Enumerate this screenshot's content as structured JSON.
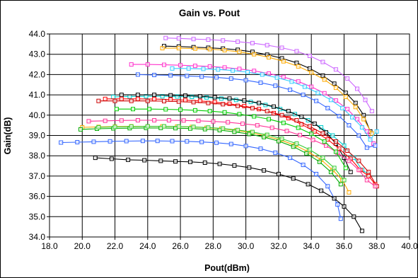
{
  "chart_data": {
    "type": "line",
    "title": "Gain vs. Pout",
    "xlabel": "Pout(dBm)",
    "ylabel": "Gain(dB)",
    "xlim": [
      18.0,
      40.0
    ],
    "ylim": [
      34.0,
      44.0
    ],
    "x_ticks": [
      "18.0",
      "20.0",
      "22.0",
      "24.0",
      "26.0",
      "28.0",
      "30.0",
      "32.0",
      "34.0",
      "36.0",
      "38.0",
      "40.0"
    ],
    "y_ticks": [
      "34.0",
      "35.0",
      "36.0",
      "37.0",
      "38.0",
      "39.0",
      "40.0",
      "41.0",
      "42.0",
      "43.0",
      "44.0"
    ],
    "grid": true,
    "marker": "square",
    "series": [
      {
        "color": "#cc66ff",
        "x": [
          25.1,
          25.9,
          26.8,
          27.7,
          28.6,
          29.5,
          30.4,
          31.3,
          32.2,
          33.1,
          33.9,
          34.7,
          35.5,
          36.2,
          36.8,
          37.3,
          37.7
        ],
        "y": [
          43.8,
          43.78,
          43.75,
          43.72,
          43.68,
          43.62,
          43.55,
          43.45,
          43.32,
          43.15,
          42.92,
          42.62,
          42.25,
          41.8,
          41.3,
          40.75,
          40.2
        ]
      },
      {
        "color": "#000000",
        "x": [
          25.0,
          25.9,
          26.8,
          27.7,
          28.6,
          29.5,
          30.4,
          31.3,
          32.2,
          33.1,
          33.9,
          34.7,
          35.4,
          36.1,
          36.7,
          37.2,
          37.6
        ],
        "y": [
          43.4,
          43.38,
          43.35,
          43.32,
          43.28,
          43.22,
          43.12,
          42.98,
          42.8,
          42.58,
          42.3,
          41.95,
          41.55,
          41.1,
          40.6,
          40.0,
          39.2
        ]
      },
      {
        "color": "#ffaa00",
        "x": [
          24.9,
          25.9,
          26.9,
          27.8,
          28.7,
          29.6,
          30.5,
          31.4,
          32.3,
          33.2,
          34.0,
          34.8,
          35.5,
          36.1,
          36.7,
          37.2,
          37.7
        ],
        "y": [
          43.3,
          43.3,
          43.28,
          43.25,
          43.2,
          43.12,
          43.0,
          42.85,
          42.65,
          42.4,
          42.1,
          41.75,
          41.35,
          40.9,
          40.4,
          39.8,
          39.1
        ]
      },
      {
        "color": "#ff33cc",
        "x": [
          23.0,
          24.0,
          25.0,
          26.0,
          26.9,
          27.8,
          28.7,
          29.6,
          30.5,
          31.4,
          32.3,
          33.2,
          34.0,
          34.8,
          35.5,
          36.2,
          36.8,
          37.4,
          37.8
        ],
        "y": [
          42.5,
          42.5,
          42.48,
          42.46,
          42.43,
          42.4,
          42.35,
          42.28,
          42.18,
          42.05,
          41.88,
          41.66,
          41.4,
          41.08,
          40.72,
          40.3,
          39.8,
          39.2,
          38.6
        ]
      },
      {
        "color": "#33ccff",
        "x": [
          25.5,
          26.5,
          27.4,
          28.3,
          29.2,
          30.1,
          31.0,
          31.9,
          32.8,
          33.6,
          34.4,
          35.2,
          35.9,
          36.5,
          37.1,
          37.6,
          38.0
        ],
        "y": [
          42.3,
          42.3,
          42.28,
          42.25,
          42.2,
          42.12,
          42.0,
          41.85,
          41.65,
          41.4,
          41.1,
          40.75,
          40.35,
          39.9,
          39.4,
          38.8,
          39.2
        ]
      },
      {
        "color": "#3366ff",
        "x": [
          23.4,
          24.4,
          25.4,
          26.4,
          27.3,
          28.2,
          29.1,
          30.0,
          30.9,
          31.8,
          32.7,
          33.5,
          34.3,
          35.0,
          35.7,
          36.3,
          36.9,
          37.4,
          37.9
        ],
        "y": [
          42.0,
          41.98,
          41.96,
          41.93,
          41.9,
          41.86,
          41.8,
          41.72,
          41.6,
          41.45,
          41.25,
          41.0,
          40.7,
          40.35,
          39.95,
          39.5,
          39.0,
          38.4,
          38.5
        ]
      },
      {
        "color": "#00cccc",
        "x": [
          21.9,
          22.9,
          23.9,
          24.9,
          25.8,
          26.7,
          27.6,
          28.5,
          29.4,
          30.3,
          31.2,
          32.1,
          33.0,
          33.8,
          34.6,
          35.3,
          36.0,
          36.6,
          37.1,
          37.5
        ],
        "y": [
          40.9,
          40.92,
          40.93,
          40.93,
          40.92,
          40.9,
          40.87,
          40.82,
          40.75,
          40.65,
          40.5,
          40.3,
          40.05,
          39.75,
          39.4,
          39.0,
          38.5,
          37.9,
          37.3,
          37.1
        ]
      },
      {
        "color": "#000000",
        "x": [
          22.4,
          23.4,
          24.4,
          25.4,
          26.3,
          27.2,
          28.1,
          29.0,
          29.9,
          30.8,
          31.7,
          32.6,
          33.4,
          34.2,
          34.9,
          35.5,
          36.0,
          36.4
        ],
        "y": [
          41.0,
          41.0,
          41.0,
          40.98,
          40.96,
          40.93,
          40.88,
          40.82,
          40.72,
          40.6,
          40.42,
          40.2,
          39.92,
          39.58,
          39.15,
          38.6,
          37.9,
          37.2
        ]
      },
      {
        "color": "#ff0000",
        "x": [
          21.4,
          22.4,
          23.4,
          24.4,
          25.4,
          26.3,
          27.2,
          28.1,
          29.0,
          29.9,
          30.8,
          31.7,
          32.6,
          33.4,
          34.2,
          35.0,
          35.7,
          36.4,
          37.0,
          37.5,
          37.9
        ],
        "y": [
          40.8,
          40.8,
          40.8,
          40.79,
          40.77,
          40.74,
          40.7,
          40.64,
          40.56,
          40.45,
          40.3,
          40.1,
          39.85,
          39.55,
          39.2,
          38.8,
          38.35,
          37.85,
          37.3,
          37.0,
          36.6
        ]
      },
      {
        "color": "#cc0000",
        "x": [
          21.0,
          22.0,
          23.0,
          24.0,
          25.0,
          25.9,
          26.8,
          27.7,
          28.6,
          29.5,
          30.4,
          31.3,
          32.2,
          33.1,
          33.9,
          34.7,
          35.5,
          36.2,
          36.9,
          37.5,
          38.0
        ],
        "y": [
          40.7,
          40.7,
          40.7,
          40.7,
          40.69,
          40.67,
          40.64,
          40.6,
          40.54,
          40.46,
          40.35,
          40.2,
          40.0,
          39.75,
          39.45,
          39.1,
          38.7,
          38.25,
          37.75,
          37.2,
          36.5
        ]
      },
      {
        "color": "#ff3399",
        "x": [
          20.4,
          21.4,
          22.4,
          23.4,
          24.4,
          25.3,
          26.2,
          27.1,
          28.0,
          28.9,
          29.8,
          30.7,
          31.6,
          32.5,
          33.3,
          34.1,
          34.9,
          35.6,
          36.3,
          36.9,
          37.4,
          37.9
        ],
        "y": [
          39.7,
          39.72,
          39.74,
          39.75,
          39.75,
          39.75,
          39.74,
          39.72,
          39.69,
          39.65,
          39.58,
          39.5,
          39.38,
          39.22,
          39.02,
          38.78,
          38.5,
          38.15,
          37.75,
          37.3,
          36.8,
          36.5
        ]
      },
      {
        "color": "#00cc00",
        "x": [
          22.1,
          23.1,
          24.1,
          25.1,
          26.0,
          26.9,
          27.8,
          28.7,
          29.6,
          30.5,
          31.4,
          32.3,
          33.2,
          34.0,
          34.8,
          35.5,
          36.1
        ],
        "y": [
          40.3,
          40.3,
          40.3,
          40.29,
          40.27,
          40.24,
          40.2,
          40.14,
          40.05,
          39.94,
          39.8,
          39.62,
          39.38,
          39.08,
          38.7,
          38.2,
          37.4
        ]
      },
      {
        "color": "#ffaa00",
        "x": [
          20.0,
          21.0,
          22.0,
          23.0,
          24.0,
          24.9,
          25.8,
          26.7,
          27.6,
          28.5,
          29.4,
          30.3,
          31.2,
          32.1,
          33.0,
          33.8,
          34.6,
          35.3,
          35.9,
          36.3
        ],
        "y": [
          39.4,
          39.42,
          39.44,
          39.45,
          39.45,
          39.45,
          39.44,
          39.42,
          39.38,
          39.33,
          39.25,
          39.14,
          38.98,
          38.78,
          38.52,
          38.2,
          37.8,
          37.3,
          36.8,
          36.2
        ]
      },
      {
        "color": "#00aa00",
        "x": [
          19.9,
          20.9,
          21.9,
          22.9,
          23.9,
          24.8,
          25.7,
          26.6,
          27.5,
          28.4,
          29.3,
          30.2,
          31.1,
          32.0,
          32.9,
          33.7,
          34.5,
          35.2,
          35.8
        ],
        "y": [
          39.3,
          39.33,
          39.35,
          39.36,
          39.37,
          39.37,
          39.36,
          39.34,
          39.31,
          39.26,
          39.18,
          39.07,
          38.92,
          38.72,
          38.45,
          38.12,
          37.7,
          37.2,
          36.6
        ]
      },
      {
        "color": "#33cc33",
        "x": [
          21.0,
          22.0,
          23.0,
          24.0,
          25.0,
          25.9,
          26.8,
          27.7,
          28.6,
          29.5,
          30.4,
          31.3,
          32.2,
          33.1,
          33.9,
          34.7,
          35.4,
          36.0
        ],
        "y": [
          39.4,
          39.42,
          39.44,
          39.45,
          39.45,
          39.44,
          39.42,
          39.39,
          39.34,
          39.27,
          39.17,
          39.03,
          38.84,
          38.6,
          38.3,
          37.9,
          37.4,
          36.8
        ]
      },
      {
        "color": "#3366ff",
        "x": [
          18.7,
          19.7,
          20.7,
          21.7,
          22.7,
          23.7,
          24.6,
          25.5,
          26.4,
          27.3,
          28.2,
          29.1,
          30.0,
          30.9,
          31.8,
          32.7,
          33.5,
          34.3,
          35.0,
          35.6,
          35.8
        ],
        "y": [
          38.65,
          38.67,
          38.69,
          38.71,
          38.72,
          38.73,
          38.73,
          38.72,
          38.71,
          38.68,
          38.64,
          38.58,
          38.48,
          38.35,
          38.15,
          37.9,
          37.55,
          37.1,
          36.5,
          35.6,
          34.9
        ]
      },
      {
        "color": "#000000",
        "x": [
          20.8,
          21.8,
          22.8,
          23.8,
          24.8,
          25.7,
          26.6,
          27.5,
          28.4,
          29.3,
          30.2,
          31.1,
          32.0,
          32.9,
          33.8,
          34.6,
          35.4,
          36.0,
          36.6,
          37.1
        ],
        "y": [
          37.9,
          37.85,
          37.8,
          37.78,
          37.75,
          37.72,
          37.7,
          37.66,
          37.6,
          37.52,
          37.42,
          37.28,
          37.1,
          36.88,
          36.6,
          36.28,
          35.9,
          35.5,
          35.0,
          34.3
        ]
      }
    ]
  }
}
